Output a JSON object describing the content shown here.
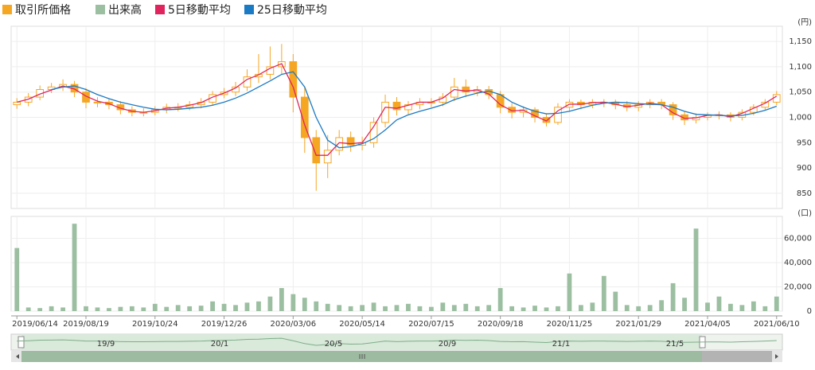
{
  "chart_data": {
    "type": "candlestick",
    "categories": [
      "2019/06/14",
      null,
      null,
      null,
      null,
      null,
      "2019/08/19",
      null,
      null,
      null,
      null,
      null,
      "2019/10/24",
      null,
      null,
      null,
      null,
      null,
      "2019/12/26",
      null,
      null,
      null,
      null,
      null,
      "2020/03/06",
      null,
      null,
      null,
      null,
      null,
      "2020/05/14",
      null,
      null,
      null,
      null,
      null,
      "2020/07/15",
      null,
      null,
      null,
      null,
      null,
      "2020/09/18",
      null,
      null,
      null,
      null,
      null,
      "2020/11/25",
      null,
      null,
      null,
      null,
      null,
      "2021/01/29",
      null,
      null,
      null,
      null,
      null,
      "2021/04/05",
      null,
      null,
      null,
      null,
      null,
      "2021/06/10"
    ],
    "price": {
      "name": "取引所価格",
      "color": "#f5a623",
      "open": [
        1025,
        1030,
        1040,
        1055,
        1060,
        1065,
        1050,
        1030,
        1030,
        1025,
        1015,
        1010,
        1010,
        1015,
        1020,
        1020,
        1025,
        1030,
        1045,
        1050,
        1060,
        1080,
        1085,
        1100,
        1110,
        1040,
        960,
        910,
        935,
        960,
        945,
        950,
        990,
        1030,
        1015,
        1025,
        1030,
        1030,
        1040,
        1060,
        1050,
        1055,
        1045,
        1020,
        1010,
        1015,
        1000,
        990,
        1020,
        1030,
        1025,
        1030,
        1030,
        1025,
        1020,
        1025,
        1030,
        1025,
        1005,
        995,
        1000,
        1005,
        1005,
        1000,
        1010,
        1020,
        1030
      ],
      "high": [
        1038,
        1048,
        1063,
        1068,
        1075,
        1072,
        1058,
        1040,
        1036,
        1032,
        1022,
        1018,
        1022,
        1027,
        1028,
        1032,
        1038,
        1052,
        1058,
        1070,
        1095,
        1125,
        1140,
        1145,
        1125,
        1060,
        975,
        965,
        975,
        972,
        962,
        1000,
        1045,
        1040,
        1032,
        1038,
        1038,
        1048,
        1078,
        1075,
        1062,
        1062,
        1052,
        1028,
        1022,
        1020,
        1008,
        1028,
        1036,
        1035,
        1036,
        1036,
        1035,
        1032,
        1032,
        1036,
        1036,
        1030,
        1012,
        1008,
        1010,
        1012,
        1010,
        1016,
        1026,
        1036,
        1052
      ],
      "low": [
        1017,
        1022,
        1034,
        1048,
        1052,
        1040,
        1018,
        1020,
        1016,
        1006,
        1002,
        1002,
        1004,
        1008,
        1012,
        1014,
        1018,
        1024,
        1038,
        1042,
        1052,
        1068,
        1075,
        1085,
        1010,
        930,
        855,
        880,
        925,
        932,
        935,
        940,
        980,
        1004,
        1006,
        1016,
        1020,
        1022,
        1032,
        1040,
        1042,
        1036,
        1008,
        998,
        1000,
        990,
        982,
        985,
        1012,
        1016,
        1018,
        1020,
        1016,
        1012,
        1012,
        1018,
        1016,
        995,
        985,
        988,
        994,
        996,
        992,
        994,
        1004,
        1014,
        1024
      ],
      "close": [
        1030,
        1040,
        1055,
        1060,
        1065,
        1050,
        1030,
        1030,
        1025,
        1015,
        1010,
        1010,
        1015,
        1020,
        1020,
        1025,
        1030,
        1045,
        1050,
        1060,
        1080,
        1085,
        1100,
        1110,
        1040,
        960,
        910,
        935,
        960,
        945,
        950,
        990,
        1030,
        1015,
        1025,
        1030,
        1030,
        1040,
        1060,
        1050,
        1055,
        1045,
        1020,
        1010,
        1015,
        1000,
        990,
        1020,
        1030,
        1025,
        1030,
        1030,
        1025,
        1020,
        1025,
        1030,
        1025,
        1005,
        995,
        1000,
        1005,
        1005,
        1000,
        1010,
        1020,
        1030,
        1045
      ]
    },
    "volume": {
      "name": "出来高",
      "color": "#9cbfa2",
      "values": [
        52000,
        3000,
        2500,
        4000,
        3000,
        72000,
        4000,
        3000,
        2500,
        3500,
        4000,
        3000,
        6000,
        3500,
        5000,
        4000,
        4500,
        8000,
        6000,
        5000,
        7000,
        8000,
        12000,
        19000,
        14000,
        11000,
        8000,
        6000,
        5000,
        4000,
        5000,
        7000,
        4000,
        5000,
        6000,
        4000,
        3500,
        7000,
        5000,
        6000,
        4000,
        5000,
        19000,
        4000,
        3000,
        4500,
        3000,
        4000,
        31000,
        5000,
        7000,
        29000,
        16000,
        5000,
        4000,
        5000,
        9000,
        23000,
        11000,
        68000,
        7000,
        12000,
        6000,
        5000,
        8000,
        4000,
        12000
      ]
    },
    "series": [
      {
        "name": "5日移動平均",
        "color": "#e0245e",
        "values": [
          1030,
          1036,
          1046,
          1054,
          1062,
          1056,
          1042,
          1032,
          1027,
          1018,
          1012,
          1010,
          1013,
          1018,
          1020,
          1024,
          1029,
          1040,
          1048,
          1058,
          1075,
          1084,
          1097,
          1106,
          1060,
          985,
          925,
          925,
          950,
          948,
          950,
          982,
          1020,
          1018,
          1024,
          1030,
          1030,
          1038,
          1055,
          1052,
          1054,
          1046,
          1025,
          1013,
          1014,
          1003,
          993,
          1013,
          1026,
          1026,
          1029,
          1030,
          1026,
          1021,
          1024,
          1028,
          1025,
          1009,
          998,
          999,
          1004,
          1005,
          1001,
          1008,
          1018,
          1028,
          1042
        ]
      },
      {
        "name": "25日移動平均",
        "color": "#1a7ac4",
        "values": [
          null,
          null,
          null,
          1055,
          1060,
          1062,
          1055,
          1045,
          1037,
          1030,
          1025,
          1020,
          1016,
          1015,
          1016,
          1018,
          1020,
          1024,
          1030,
          1038,
          1048,
          1060,
          1072,
          1085,
          1090,
          1060,
          1000,
          955,
          940,
          942,
          948,
          958,
          975,
          995,
          1005,
          1012,
          1018,
          1025,
          1035,
          1042,
          1048,
          1052,
          1045,
          1030,
          1020,
          1012,
          1007,
          1008,
          1012,
          1018,
          1024,
          1028,
          1030,
          1029,
          1027,
          1026,
          1025,
          1020,
          1012,
          1006,
          1005,
          1004,
          1003,
          1004,
          1008,
          1014,
          1022
        ]
      }
    ],
    "ylim": [
      820,
      1180
    ],
    "yticks": [
      850,
      900,
      950,
      {
        "value": 1000,
        "label": "1,000"
      },
      {
        "value": 1050,
        "label": "1,050"
      },
      {
        "value": 1100,
        "label": "1,100"
      },
      {
        "value": 1150,
        "label": "1,150"
      }
    ],
    "y_unit": "(円)",
    "y2lim": [
      0,
      78000
    ],
    "y2ticks": [
      0,
      {
        "value": 20000,
        "label": "20,000"
      },
      {
        "value": 40000,
        "label": "40,000"
      },
      {
        "value": 60000,
        "label": "60,000"
      }
    ],
    "y2_unit": "(口)",
    "grid": true,
    "navigator_labels": [
      "19/9",
      "20/1",
      "20/5",
      "20/9",
      "21/1",
      "21/5"
    ]
  }
}
